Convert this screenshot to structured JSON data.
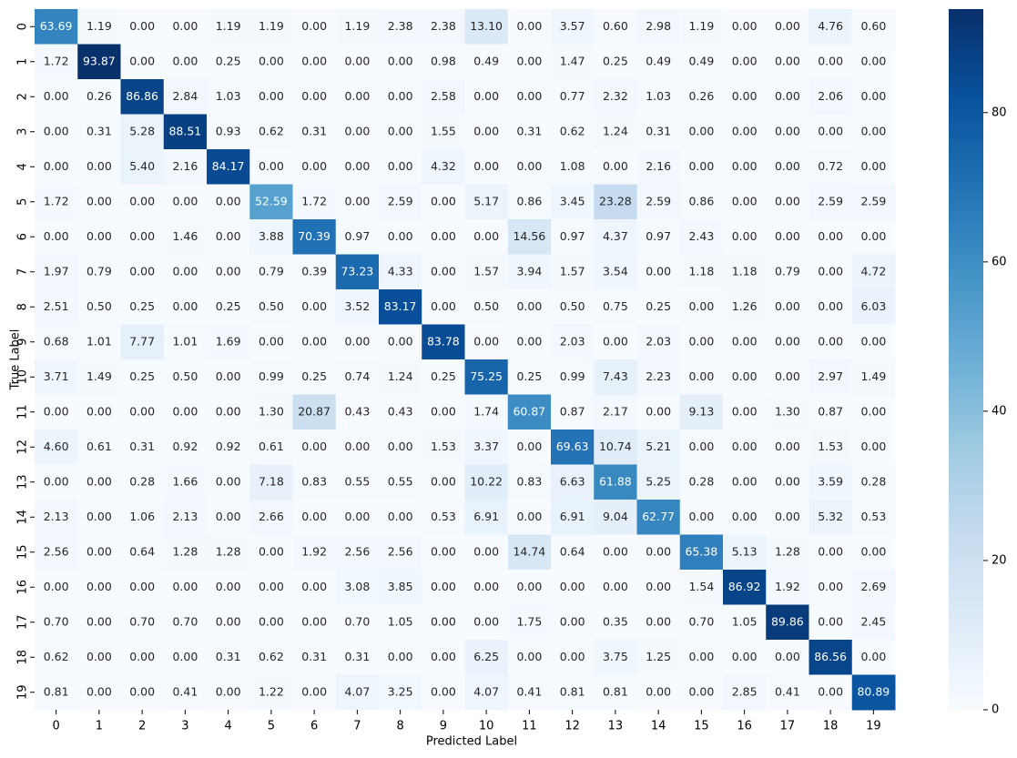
{
  "chart_data": {
    "type": "heatmap",
    "x_label": "Predicted Label",
    "y_label": "True Label",
    "x_categories": [
      "0",
      "1",
      "2",
      "3",
      "4",
      "5",
      "6",
      "7",
      "8",
      "9",
      "10",
      "11",
      "12",
      "13",
      "14",
      "15",
      "16",
      "17",
      "18",
      "19"
    ],
    "y_categories": [
      "0",
      "1",
      "2",
      "3",
      "4",
      "5",
      "6",
      "7",
      "8",
      "9",
      "10",
      "11",
      "12",
      "13",
      "14",
      "15",
      "16",
      "17",
      "18",
      "19"
    ],
    "values": [
      [
        63.69,
        1.19,
        0,
        0,
        1.19,
        1.19,
        0,
        1.19,
        2.38,
        2.38,
        13.1,
        0,
        3.57,
        0.6,
        2.98,
        1.19,
        0,
        0,
        4.76,
        0.6
      ],
      [
        1.72,
        93.87,
        0,
        0,
        0.25,
        0,
        0,
        0,
        0,
        0.98,
        0.49,
        0,
        1.47,
        0.25,
        0.49,
        0.49,
        0,
        0,
        0,
        0
      ],
      [
        0,
        0.26,
        86.86,
        2.84,
        1.03,
        0,
        0,
        0,
        0,
        2.58,
        0,
        0,
        0.77,
        2.32,
        1.03,
        0.26,
        0,
        0,
        2.06,
        0
      ],
      [
        0,
        0.31,
        5.28,
        88.51,
        0.93,
        0.62,
        0.31,
        0,
        0,
        1.55,
        0,
        0.31,
        0.62,
        1.24,
        0.31,
        0,
        0,
        0,
        0,
        0
      ],
      [
        0,
        0,
        5.4,
        2.16,
        84.17,
        0,
        0,
        0,
        0,
        4.32,
        0,
        0,
        1.08,
        0,
        2.16,
        0,
        0,
        0,
        0.72,
        0
      ],
      [
        1.72,
        0,
        0,
        0,
        0,
        52.59,
        1.72,
        0,
        2.59,
        0,
        5.17,
        0.86,
        3.45,
        23.28,
        2.59,
        0.86,
        0,
        0,
        2.59,
        2.59
      ],
      [
        0,
        0,
        0,
        1.46,
        0,
        3.88,
        70.39,
        0.97,
        0,
        0,
        0,
        14.56,
        0.97,
        4.37,
        0.97,
        2.43,
        0,
        0,
        0,
        0
      ],
      [
        1.97,
        0.79,
        0,
        0,
        0,
        0.79,
        0.39,
        73.23,
        4.33,
        0,
        1.57,
        3.94,
        1.57,
        3.54,
        0,
        1.18,
        1.18,
        0.79,
        0,
        4.72
      ],
      [
        2.51,
        0.5,
        0.25,
        0,
        0.25,
        0.5,
        0,
        3.52,
        83.17,
        0,
        0.5,
        0,
        0.5,
        0.75,
        0.25,
        0,
        1.26,
        0,
        0,
        6.03
      ],
      [
        0.68,
        1.01,
        7.77,
        1.01,
        1.69,
        0,
        0,
        0,
        0,
        83.78,
        0,
        0,
        2.03,
        0,
        2.03,
        0,
        0,
        0,
        0,
        0
      ],
      [
        3.71,
        1.49,
        0.25,
        0.5,
        0,
        0.99,
        0.25,
        0.74,
        1.24,
        0.25,
        75.25,
        0.25,
        0.99,
        7.43,
        2.23,
        0,
        0,
        0,
        2.97,
        1.49
      ],
      [
        0,
        0,
        0,
        0,
        0,
        1.3,
        20.87,
        0.43,
        0.43,
        0,
        1.74,
        60.87,
        0.87,
        2.17,
        0,
        9.13,
        0,
        1.3,
        0.87,
        0
      ],
      [
        4.6,
        0.61,
        0.31,
        0.92,
        0.92,
        0.61,
        0,
        0,
        0,
        1.53,
        3.37,
        0,
        69.63,
        10.74,
        5.21,
        0,
        0,
        0,
        1.53,
        0
      ],
      [
        0,
        0,
        0.28,
        1.66,
        0,
        7.18,
        0.83,
        0.55,
        0.55,
        0,
        10.22,
        0.83,
        6.63,
        61.88,
        5.25,
        0.28,
        0,
        0,
        3.59,
        0.28
      ],
      [
        2.13,
        0,
        1.06,
        2.13,
        0,
        2.66,
        0,
        0,
        0,
        0.53,
        6.91,
        0,
        6.91,
        9.04,
        62.77,
        0,
        0,
        0,
        5.32,
        0.53
      ],
      [
        2.56,
        0,
        0.64,
        1.28,
        1.28,
        0,
        1.92,
        2.56,
        2.56,
        0,
        0,
        14.74,
        0.64,
        0,
        0,
        65.38,
        5.13,
        1.28,
        0,
        0
      ],
      [
        0,
        0,
        0,
        0,
        0,
        0,
        0,
        3.08,
        3.85,
        0,
        0,
        0,
        0,
        0,
        0,
        1.54,
        86.92,
        1.92,
        0,
        2.69
      ],
      [
        0.7,
        0,
        0.7,
        0.7,
        0,
        0,
        0,
        0.7,
        1.05,
        0,
        0,
        1.75,
        0,
        0.35,
        0,
        0.7,
        1.05,
        89.86,
        0,
        2.45
      ],
      [
        0.62,
        0,
        0,
        0,
        0.31,
        0.62,
        0.31,
        0.31,
        0,
        0,
        6.25,
        0,
        0,
        3.75,
        1.25,
        0,
        0,
        0,
        86.56,
        0
      ],
      [
        0.81,
        0,
        0,
        0.41,
        0,
        1.22,
        0,
        4.07,
        3.25,
        0,
        4.07,
        0.41,
        0.81,
        0.81,
        0,
        0,
        2.85,
        0.41,
        0,
        80.89
      ]
    ],
    "value_labels": [
      [
        "63.69",
        "1.19",
        "0.00",
        "0.00",
        "1.19",
        "1.19",
        "0.00",
        "1.19",
        "2.38",
        "2.38",
        "13.10",
        "0.00",
        "3.57",
        "0.60",
        "2.98",
        "1.19",
        "0.00",
        "0.00",
        "4.76",
        "0.60"
      ],
      [
        "1.72",
        "93.87",
        "0.00",
        "0.00",
        "0.25",
        "0.00",
        "0.00",
        "0.00",
        "0.00",
        "0.98",
        "0.49",
        "0.00",
        "1.47",
        "0.25",
        "0.49",
        "0.49",
        "0.00",
        "0.00",
        "0.00",
        "0.00"
      ],
      [
        "0.00",
        "0.26",
        "86.86",
        "2.84",
        "1.03",
        "0.00",
        "0.00",
        "0.00",
        "0.00",
        "2.58",
        "0.00",
        "0.00",
        "0.77",
        "2.32",
        "1.03",
        "0.26",
        "0.00",
        "0.00",
        "2.06",
        "0.00"
      ],
      [
        "0.00",
        "0.31",
        "5.28",
        "88.51",
        "0.93",
        "0.62",
        "0.31",
        "0.00",
        "0.00",
        "1.55",
        "0.00",
        "0.31",
        "0.62",
        "1.24",
        "0.31",
        "0.00",
        "0.00",
        "0.00",
        "0.00",
        "0.00"
      ],
      [
        "0.00",
        "0.00",
        "5.40",
        "2.16",
        "84.17",
        "0.00",
        "0.00",
        "0.00",
        "0.00",
        "4.32",
        "0.00",
        "0.00",
        "1.08",
        "0.00",
        "2.16",
        "0.00",
        "0.00",
        "0.00",
        "0.72",
        "0.00"
      ],
      [
        "1.72",
        "0.00",
        "0.00",
        "0.00",
        "0.00",
        "52.59",
        "1.72",
        "0.00",
        "2.59",
        "0.00",
        "5.17",
        "0.86",
        "3.45",
        "23.28",
        "2.59",
        "0.86",
        "0.00",
        "0.00",
        "2.59",
        "2.59"
      ],
      [
        "0.00",
        "0.00",
        "0.00",
        "1.46",
        "0.00",
        "3.88",
        "70.39",
        "0.97",
        "0.00",
        "0.00",
        "0.00",
        "14.56",
        "0.97",
        "4.37",
        "0.97",
        "2.43",
        "0.00",
        "0.00",
        "0.00",
        "0.00"
      ],
      [
        "1.97",
        "0.79",
        "0.00",
        "0.00",
        "0.00",
        "0.79",
        "0.39",
        "73.23",
        "4.33",
        "0.00",
        "1.57",
        "3.94",
        "1.57",
        "3.54",
        "0.00",
        "1.18",
        "1.18",
        "0.79",
        "0.00",
        "4.72"
      ],
      [
        "2.51",
        "0.50",
        "0.25",
        "0.00",
        "0.25",
        "0.50",
        "0.00",
        "3.52",
        "83.17",
        "0.00",
        "0.50",
        "0.00",
        "0.50",
        "0.75",
        "0.25",
        "0.00",
        "1.26",
        "0.00",
        "0.00",
        "6.03"
      ],
      [
        "0.68",
        "1.01",
        "7.77",
        "1.01",
        "1.69",
        "0.00",
        "0.00",
        "0.00",
        "0.00",
        "83.78",
        "0.00",
        "0.00",
        "2.03",
        "0.00",
        "2.03",
        "0.00",
        "0.00",
        "0.00",
        "0.00",
        "0.00"
      ],
      [
        "3.71",
        "1.49",
        "0.25",
        "0.50",
        "0.00",
        "0.99",
        "0.25",
        "0.74",
        "1.24",
        "0.25",
        "75.25",
        "0.25",
        "0.99",
        "7.43",
        "2.23",
        "0.00",
        "0.00",
        "0.00",
        "2.97",
        "1.49"
      ],
      [
        "0.00",
        "0.00",
        "0.00",
        "0.00",
        "0.00",
        "1.30",
        "20.87",
        "0.43",
        "0.43",
        "0.00",
        "1.74",
        "60.87",
        "0.87",
        "2.17",
        "0.00",
        "9.13",
        "0.00",
        "1.30",
        "0.87",
        "0.00"
      ],
      [
        "4.60",
        "0.61",
        "0.31",
        "0.92",
        "0.92",
        "0.61",
        "0.00",
        "0.00",
        "0.00",
        "1.53",
        "3.37",
        "0.00",
        "69.63",
        "10.74",
        "5.21",
        "0.00",
        "0.00",
        "0.00",
        "1.53",
        "0.00"
      ],
      [
        "0.00",
        "0.00",
        "0.28",
        "1.66",
        "0.00",
        "7.18",
        "0.83",
        "0.55",
        "0.55",
        "0.00",
        "10.22",
        "0.83",
        "6.63",
        "61.88",
        "5.25",
        "0.28",
        "0.00",
        "0.00",
        "3.59",
        "0.28"
      ],
      [
        "2.13",
        "0.00",
        "1.06",
        "2.13",
        "0.00",
        "2.66",
        "0.00",
        "0.00",
        "0.00",
        "0.53",
        "6.91",
        "0.00",
        "6.91",
        "9.04",
        "62.77",
        "0.00",
        "0.00",
        "0.00",
        "5.32",
        "0.53"
      ],
      [
        "2.56",
        "0.00",
        "0.64",
        "1.28",
        "1.28",
        "0.00",
        "1.92",
        "2.56",
        "2.56",
        "0.00",
        "0.00",
        "14.74",
        "0.64",
        "0.00",
        "0.00",
        "65.38",
        "5.13",
        "1.28",
        "0.00",
        "0.00"
      ],
      [
        "0.00",
        "0.00",
        "0.00",
        "0.00",
        "0.00",
        "0.00",
        "0.00",
        "3.08",
        "3.85",
        "0.00",
        "0.00",
        "0.00",
        "0.00",
        "0.00",
        "0.00",
        "1.54",
        "86.92",
        "1.92",
        "0.00",
        "2.69"
      ],
      [
        "0.70",
        "0.00",
        "0.70",
        "0.70",
        "0.00",
        "0.00",
        "0.00",
        "0.70",
        "1.05",
        "0.00",
        "0.00",
        "1.75",
        "0.00",
        "0.35",
        "0.00",
        "0.70",
        "1.05",
        "89.86",
        "0.00",
        "2.45"
      ],
      [
        "0.62",
        "0.00",
        "0.00",
        "0.00",
        "0.31",
        "0.62",
        "0.31",
        "0.31",
        "0.00",
        "0.00",
        "6.25",
        "0.00",
        "0.00",
        "3.75",
        "1.25",
        "0.00",
        "0.00",
        "0.00",
        "86.56",
        "0.00"
      ],
      [
        "0.81",
        "0.00",
        "0.00",
        "0.41",
        "0.00",
        "1.22",
        "0.00",
        "4.07",
        "3.25",
        "0.00",
        "4.07",
        "0.41",
        "0.81",
        "0.81",
        "0.00",
        "0.00",
        "2.85",
        "0.41",
        "0.00",
        "80.89"
      ]
    ],
    "colormap": [
      "#f7fbff",
      "#deebf7",
      "#c6dbef",
      "#9ecae1",
      "#6baed6",
      "#4292c6",
      "#2171b5",
      "#08519c",
      "#08306b"
    ],
    "colorbar_lim": [
      0,
      93.87
    ],
    "colorbar_ticks": [
      0,
      20,
      40,
      60,
      80
    ]
  }
}
